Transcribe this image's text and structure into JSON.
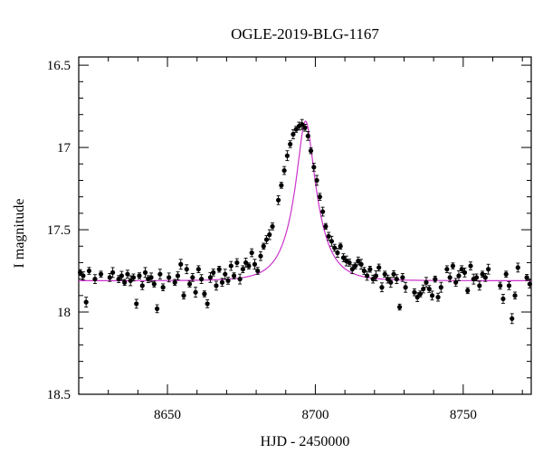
{
  "chart_data": {
    "type": "scatter",
    "title": "OGLE-2019-BLG-1167",
    "xlabel": "HJD - 2450000",
    "ylabel": "I magnitude",
    "xlim": [
      8620,
      8773
    ],
    "ylim": [
      16.45,
      18.5
    ],
    "y_inverted": true,
    "x_ticks": [
      8650,
      8700,
      8750
    ],
    "x_tick_labels": [
      "8650",
      "8700",
      "8750"
    ],
    "y_ticks": [
      16.5,
      17,
      17.5,
      18,
      18.5
    ],
    "y_tick_labels": [
      "16.5",
      "17",
      "17.5",
      "18",
      "18.5"
    ],
    "grid": false,
    "series": [
      {
        "kind": "points-with-error-bars",
        "color": "#000000",
        "x": [
          8620.5,
          8621.5,
          8622.5,
          8623.5,
          8625.5,
          8627.5,
          8630.5,
          8631.5,
          8633.5,
          8634.5,
          8635.5,
          8636.5,
          8637.5,
          8638.5,
          8639.5,
          8640.5,
          8641.5,
          8642.5,
          8643.5,
          8644.5,
          8645.5,
          8646.5,
          8647.5,
          8648.5,
          8650.5,
          8652.5,
          8653.5,
          8654.5,
          8655.5,
          8656.5,
          8657.5,
          8658.5,
          8659.5,
          8660.5,
          8661.5,
          8662.5,
          8663.5,
          8664.5,
          8665.5,
          8666.5,
          8667.5,
          8668.5,
          8669.5,
          8670.5,
          8671.5,
          8672.5,
          8673.5,
          8674.5,
          8675.5,
          8676.5,
          8677.5,
          8678.5,
          8679.5,
          8680.5,
          8681.5,
          8682.5,
          8683.5,
          8684.5,
          8685.5,
          8687.5,
          8688.5,
          8689.5,
          8690.5,
          8691.5,
          8692.5,
          8693.5,
          8694.5,
          8695.5,
          8696.5,
          8697.5,
          8698.5,
          8699.5,
          8700.5,
          8701.5,
          8702.5,
          8703.5,
          8704.5,
          8705.5,
          8706.5,
          8707.5,
          8708.5,
          8709.5,
          8710.5,
          8711.5,
          8712.5,
          8713.5,
          8714.5,
          8715.5,
          8716.5,
          8717.5,
          8718.5,
          8719.5,
          8720.5,
          8721.5,
          8722.5,
          8723.5,
          8724.5,
          8725.5,
          8726.5,
          8727.5,
          8728.5,
          8729.5,
          8730.5,
          8733.5,
          8734.5,
          8735.5,
          8736.5,
          8737.5,
          8738.5,
          8739.5,
          8740.5,
          8741.5,
          8742.5,
          8744.5,
          8745.5,
          8746.5,
          8747.5,
          8748.5,
          8749.5,
          8750.5,
          8751.5,
          8752.5,
          8753.5,
          8754.5,
          8755.5,
          8756.5,
          8757.5,
          8758.5,
          8762.5,
          8763.5,
          8764.5,
          8765.5,
          8766.5,
          8767.5,
          8768.5,
          8771.5,
          8772.5
        ],
        "y": [
          17.76,
          17.78,
          17.94,
          17.75,
          17.8,
          17.77,
          17.79,
          17.76,
          17.8,
          17.78,
          17.82,
          17.77,
          17.81,
          17.79,
          17.95,
          17.78,
          17.84,
          17.76,
          17.8,
          17.79,
          17.83,
          17.98,
          17.77,
          17.85,
          17.79,
          17.82,
          17.78,
          17.71,
          17.9,
          17.74,
          17.83,
          17.79,
          17.88,
          17.74,
          17.8,
          17.89,
          17.95,
          17.79,
          17.76,
          17.84,
          17.74,
          17.82,
          17.77,
          17.81,
          17.72,
          17.78,
          17.7,
          17.8,
          17.74,
          17.7,
          17.72,
          17.64,
          17.71,
          17.75,
          17.66,
          17.6,
          17.56,
          17.53,
          17.48,
          17.32,
          17.23,
          17.14,
          17.05,
          16.98,
          16.92,
          16.89,
          16.87,
          16.86,
          16.88,
          16.93,
          17.02,
          17.12,
          17.2,
          17.3,
          17.39,
          17.48,
          17.54,
          17.57,
          17.61,
          17.64,
          17.6,
          17.67,
          17.69,
          17.7,
          17.74,
          17.72,
          17.69,
          17.71,
          17.75,
          17.78,
          17.74,
          17.8,
          17.78,
          17.73,
          17.85,
          17.77,
          17.8,
          17.82,
          17.77,
          17.8,
          17.97,
          17.79,
          17.85,
          17.88,
          17.91,
          17.89,
          17.86,
          17.82,
          17.86,
          17.9,
          17.8,
          17.91,
          17.85,
          17.74,
          17.79,
          17.72,
          17.82,
          17.78,
          17.74,
          17.76,
          17.87,
          17.72,
          17.8,
          17.79,
          17.84,
          17.77,
          17.79,
          17.74,
          17.84,
          17.92,
          17.77,
          17.84,
          18.04,
          17.9,
          17.73,
          17.79,
          17.83
        ]
      },
      {
        "kind": "model-curve",
        "color": "#cc33cc",
        "t0": 8696.7,
        "u0": 0.3,
        "tE": 8,
        "baseline": 17.81,
        "peak": 16.84
      }
    ]
  }
}
